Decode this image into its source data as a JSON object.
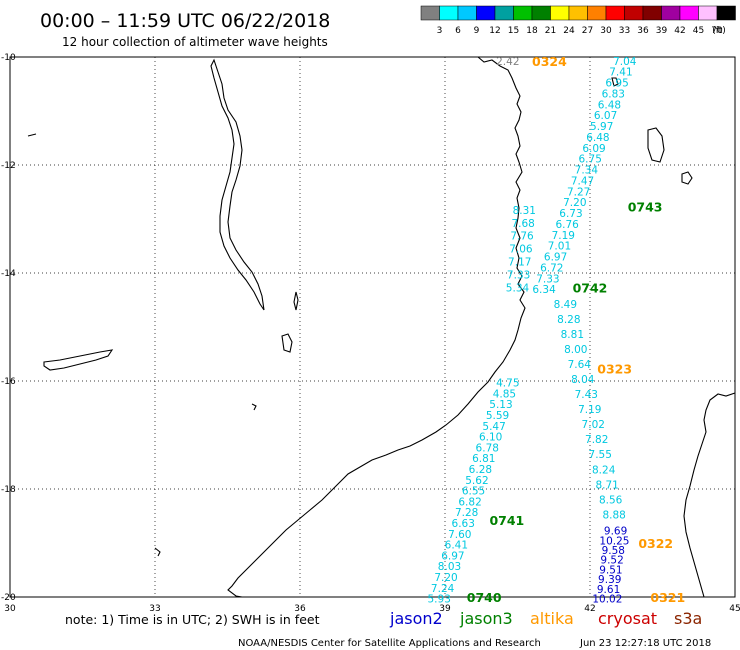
{
  "header": {
    "title": "00:00 – 11:59 UTC 06/22/2018",
    "subtitle": "12 hour collection of altimeter wave heights"
  },
  "colorbar": {
    "colors": [
      "#808080",
      "#00ffff",
      "#00c8ff",
      "#0000ff",
      "#00a0a0",
      "#00c000",
      "#008000",
      "#ffff00",
      "#ffc000",
      "#ff8000",
      "#ff0000",
      "#c00000",
      "#800000",
      "#a000a0",
      "#ff00ff",
      "#ffc0ff",
      "#000000"
    ],
    "labels": [
      "3",
      "6",
      "9",
      "12",
      "15",
      "18",
      "21",
      "24",
      "27",
      "30",
      "33",
      "36",
      "39",
      "42",
      "45",
      "70"
    ],
    "unit": "(ft)"
  },
  "axes": {
    "lon_ticks": [
      "30",
      "33",
      "36",
      "39",
      "42",
      "45"
    ],
    "lat_ticks": [
      "-10",
      "-12",
      "-14",
      "-16",
      "-18",
      "-20"
    ]
  },
  "legend": {
    "note": "note: 1) Time is in UTC; 2) SWH is in feet",
    "satellites": [
      {
        "name": "jason2",
        "color": "#0000cc"
      },
      {
        "name": "jason3",
        "color": "#008000"
      },
      {
        "name": "altika",
        "color": "#ff9900"
      },
      {
        "name": "cryosat",
        "color": "#cc0000"
      },
      {
        "name": "s3a",
        "color": "#8b2500"
      }
    ]
  },
  "footer": {
    "credit": "NOAA/NESDIS Center for Satellite Applications and Research",
    "timestamp": "Jun 23 12:27:18 UTC 2018"
  },
  "tracks": [
    {
      "values": [
        "2.42"
      ],
      "color": "#808080",
      "lon": [
        40.3
      ],
      "lat": [
        -10.07
      ]
    },
    {
      "values": [
        "7.04",
        "7.41",
        "6.95",
        "6.83",
        "6.48",
        "6.07",
        "5.97",
        "6.48",
        "6.09",
        "6.75",
        "7.34",
        "7.47",
        "7.27",
        "7.20",
        "6.73",
        "6.76",
        "7.19",
        "7.01",
        "6.97",
        "6.72",
        "7.33",
        "6.34"
      ],
      "color": "#00c8e0",
      "lon_start": 42.72,
      "lon_end": 41.05,
      "lat_start": -10.07,
      "lat_end": -14.3
    },
    {
      "values": [
        "8.31",
        "7.68",
        "7.76",
        "7.06",
        "7.17",
        "7.33",
        "5.34"
      ],
      "color": "#00c8e0",
      "lon_start": 40.64,
      "lon_end": 40.5,
      "lat_start": -12.83,
      "lat_end": -14.27
    },
    {
      "values": [
        "8.49",
        "8.28",
        "8.81",
        "8.00",
        "7.64",
        "8.04",
        "7.43",
        "7.19",
        "7.02",
        "7.82",
        "7.55",
        "8.24",
        "8.71",
        "8.56",
        "8.88"
      ],
      "color": "#00c8e0",
      "lon_start": 41.49,
      "lon_end": 42.5,
      "lat_start": -14.57,
      "lat_end": -18.47
    },
    {
      "values": [
        "9.69",
        "10.25",
        "9.58",
        "9.52",
        "9.51",
        "9.39",
        "9.61",
        "10.02"
      ],
      "color": "#0000c8",
      "lon_start": 42.53,
      "lon_end": 42.36,
      "lat_start": -18.77,
      "lat_end": -20.03
    },
    {
      "values": [
        "4.75",
        "4.85",
        "5.13",
        "5.59",
        "5.47",
        "6.10",
        "6.78",
        "6.81",
        "6.28",
        "5.62",
        "6.55",
        "6.82",
        "7.28",
        "6.63",
        "7.60",
        "6.41",
        "6.97",
        "8.03",
        "7.20",
        "7.24",
        "5.93"
      ],
      "color": "#00c8e0",
      "lon_start": 40.3,
      "lon_end": 38.88,
      "lat_start": -16.03,
      "lat_end": -20.03
    }
  ],
  "pass_labels": [
    {
      "text": "0324",
      "color": "#ff9900",
      "lon": 40.8,
      "lat": -10.07
    },
    {
      "text": "0743",
      "color": "#008000",
      "lon": 42.78,
      "lat": -12.77
    },
    {
      "text": "0742",
      "color": "#008000",
      "lon": 41.64,
      "lat": -14.27
    },
    {
      "text": "0323",
      "color": "#ff9900",
      "lon": 42.15,
      "lat": -15.77
    },
    {
      "text": "0741",
      "color": "#008000",
      "lon": 39.92,
      "lat": -18.57
    },
    {
      "text": "0322",
      "color": "#ff9900",
      "lon": 43.0,
      "lat": -19.0
    },
    {
      "text": "0740",
      "color": "#008000",
      "lon": 39.45,
      "lat": -20.0
    },
    {
      "text": "0321",
      "color": "#ff9900",
      "lon": 43.25,
      "lat": -20.0
    }
  ]
}
